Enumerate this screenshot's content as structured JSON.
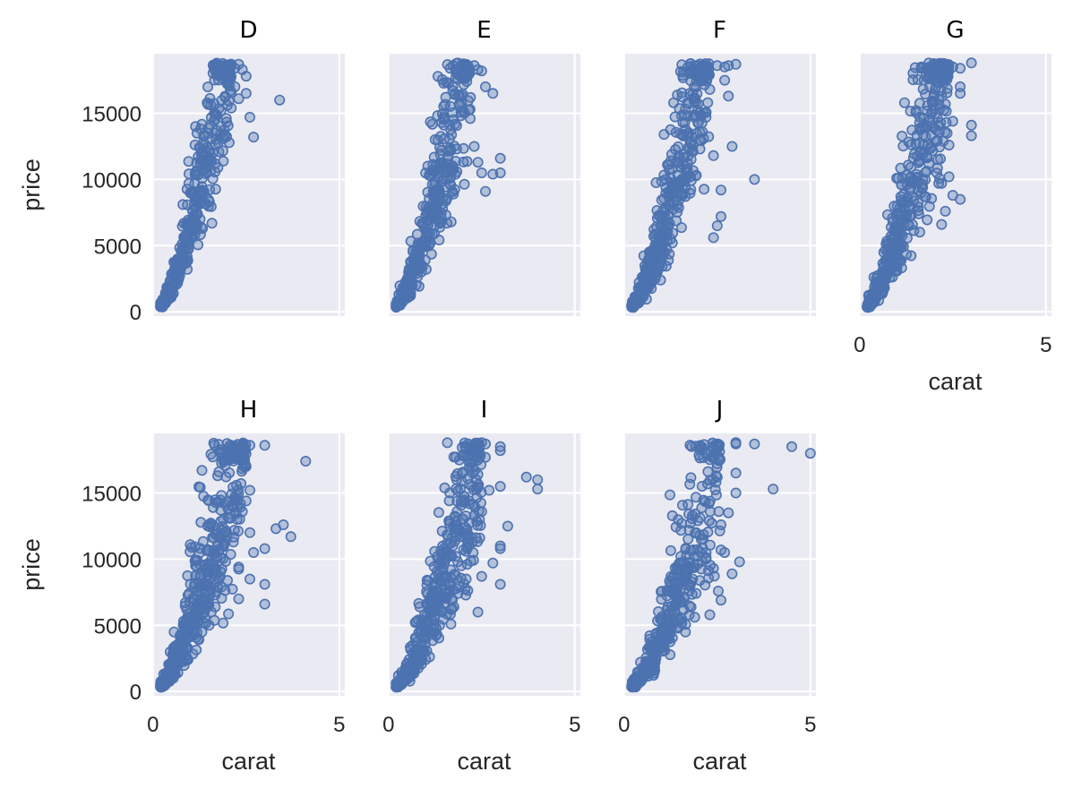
{
  "chart_data": {
    "type": "scatter",
    "facet_variable": "color",
    "xlabel": "carat",
    "ylabel": "price",
    "xlim": [
      -0.02,
      5.15
    ],
    "ylim": [
      -326,
      19500
    ],
    "x_ticks": [
      0,
      5
    ],
    "x_tick_labels": [
      "0",
      "5"
    ],
    "y_ticks": [
      0,
      5000,
      10000,
      15000
    ],
    "y_tick_labels": [
      "0",
      "5000",
      "10000",
      "15000"
    ],
    "grid": true,
    "marker": "open circle",
    "colors": {
      "panel": "#eaeaf2",
      "grid": "#ffffff",
      "point_edge": "#4c72b0",
      "point_fill": "rgba(76,114,176,0.35)"
    },
    "facets": [
      {
        "title": "D",
        "trend": {
          "slope": 7600,
          "curve": 0.95,
          "xmin": 0.2,
          "xmax": 2.1,
          "spread": 0.25,
          "n": 380
        },
        "outliers": [
          [
            2.1,
            18600
          ],
          [
            2.2,
            18400
          ],
          [
            2.3,
            18700
          ],
          [
            2.4,
            18300
          ],
          [
            2.2,
            17000
          ],
          [
            2.5,
            16500
          ],
          [
            2.6,
            14700
          ],
          [
            2.7,
            13200
          ],
          [
            3.4,
            16000
          ],
          [
            2.5,
            17800
          ],
          [
            2.1,
            16600
          ],
          [
            2.3,
            16100
          ],
          [
            2.0,
            17200
          ],
          [
            2.1,
            15400
          ]
        ]
      },
      {
        "title": "E",
        "trend": {
          "slope": 7300,
          "curve": 0.95,
          "xmin": 0.2,
          "xmax": 2.2,
          "spread": 0.27,
          "n": 420
        },
        "outliers": [
          [
            2.3,
            18600
          ],
          [
            2.4,
            18300
          ],
          [
            2.5,
            18200
          ],
          [
            2.6,
            17000
          ],
          [
            2.8,
            16500
          ],
          [
            3.0,
            11600
          ],
          [
            3.0,
            10500
          ],
          [
            2.5,
            10500
          ],
          [
            2.8,
            10400
          ],
          [
            2.6,
            9100
          ],
          [
            2.4,
            11300
          ],
          [
            2.3,
            12500
          ],
          [
            2.1,
            17400
          ],
          [
            2.2,
            16200
          ],
          [
            2.0,
            15200
          ]
        ]
      },
      {
        "title": "F",
        "trend": {
          "slope": 6900,
          "curve": 0.95,
          "xmin": 0.2,
          "xmax": 2.3,
          "spread": 0.28,
          "n": 460
        },
        "outliers": [
          [
            2.5,
            18600
          ],
          [
            2.7,
            18500
          ],
          [
            2.8,
            18600
          ],
          [
            3.0,
            18700
          ],
          [
            2.7,
            17500
          ],
          [
            2.8,
            16300
          ],
          [
            2.9,
            12500
          ],
          [
            3.5,
            10000
          ],
          [
            2.6,
            9200
          ],
          [
            2.5,
            6500
          ],
          [
            2.6,
            7200
          ],
          [
            2.4,
            5600
          ],
          [
            2.3,
            16800
          ],
          [
            2.2,
            17800
          ],
          [
            2.1,
            13600
          ],
          [
            2.4,
            11800
          ],
          [
            2.2,
            14700
          ]
        ]
      },
      {
        "title": "G",
        "trend": {
          "slope": 6700,
          "curve": 0.95,
          "xmin": 0.2,
          "xmax": 2.4,
          "spread": 0.3,
          "n": 460
        },
        "outliers": [
          [
            2.5,
            18500
          ],
          [
            2.7,
            18400
          ],
          [
            3.0,
            18800
          ],
          [
            2.7,
            17000
          ],
          [
            2.7,
            16500
          ],
          [
            3.0,
            14100
          ],
          [
            3.0,
            13300
          ],
          [
            2.7,
            8500
          ],
          [
            2.5,
            8800
          ],
          [
            2.3,
            7600
          ],
          [
            2.2,
            6600
          ],
          [
            2.4,
            10200
          ],
          [
            2.2,
            9700
          ],
          [
            2.5,
            14400
          ],
          [
            2.3,
            15700
          ],
          [
            2.4,
            12600
          ],
          [
            2.1,
            11500
          ]
        ]
      },
      {
        "title": "H",
        "trend": {
          "slope": 6000,
          "curve": 0.95,
          "xmin": 0.2,
          "xmax": 2.5,
          "spread": 0.32,
          "n": 480
        },
        "outliers": [
          [
            2.6,
            18600
          ],
          [
            3.0,
            18600
          ],
          [
            4.1,
            17400
          ],
          [
            3.3,
            12300
          ],
          [
            3.5,
            12600
          ],
          [
            3.7,
            11700
          ],
          [
            3.0,
            10800
          ],
          [
            2.7,
            10500
          ],
          [
            3.0,
            8100
          ],
          [
            3.0,
            6600
          ],
          [
            2.6,
            8500
          ],
          [
            2.3,
            7000
          ],
          [
            2.5,
            17000
          ],
          [
            2.6,
            15200
          ],
          [
            2.4,
            13600
          ],
          [
            2.6,
            12000
          ],
          [
            2.3,
            9400
          ],
          [
            2.5,
            14400
          ]
        ]
      },
      {
        "title": "I",
        "trend": {
          "slope": 5400,
          "curve": 0.95,
          "xmin": 0.2,
          "xmax": 2.5,
          "spread": 0.3,
          "n": 440
        },
        "outliers": [
          [
            2.6,
            18700
          ],
          [
            3.0,
            18500
          ],
          [
            3.0,
            18200
          ],
          [
            3.7,
            16200
          ],
          [
            4.0,
            16000
          ],
          [
            4.0,
            15300
          ],
          [
            3.0,
            15500
          ],
          [
            2.7,
            15200
          ],
          [
            3.2,
            12500
          ],
          [
            3.0,
            11000
          ],
          [
            3.0,
            10800
          ],
          [
            2.8,
            9700
          ],
          [
            3.0,
            8100
          ],
          [
            2.4,
            6000
          ],
          [
            2.6,
            17700
          ],
          [
            2.4,
            16400
          ],
          [
            2.5,
            13600
          ],
          [
            2.2,
            11700
          ],
          [
            2.5,
            8700
          ]
        ]
      },
      {
        "title": "J",
        "trend": {
          "slope": 4800,
          "curve": 0.95,
          "xmin": 0.2,
          "xmax": 2.6,
          "spread": 0.3,
          "n": 380
        },
        "outliers": [
          [
            3.0,
            18700
          ],
          [
            3.0,
            18800
          ],
          [
            3.5,
            18700
          ],
          [
            4.5,
            18500
          ],
          [
            5.0,
            18000
          ],
          [
            4.0,
            15300
          ],
          [
            3.0,
            16500
          ],
          [
            3.0,
            15000
          ],
          [
            3.1,
            9800
          ],
          [
            2.9,
            8900
          ],
          [
            2.6,
            10700
          ],
          [
            2.7,
            10500
          ],
          [
            2.6,
            6900
          ],
          [
            2.3,
            5800
          ],
          [
            2.5,
            17200
          ],
          [
            2.8,
            13500
          ],
          [
            2.6,
            12600
          ],
          [
            2.4,
            9300
          ],
          [
            2.5,
            16200
          ]
        ]
      }
    ]
  }
}
